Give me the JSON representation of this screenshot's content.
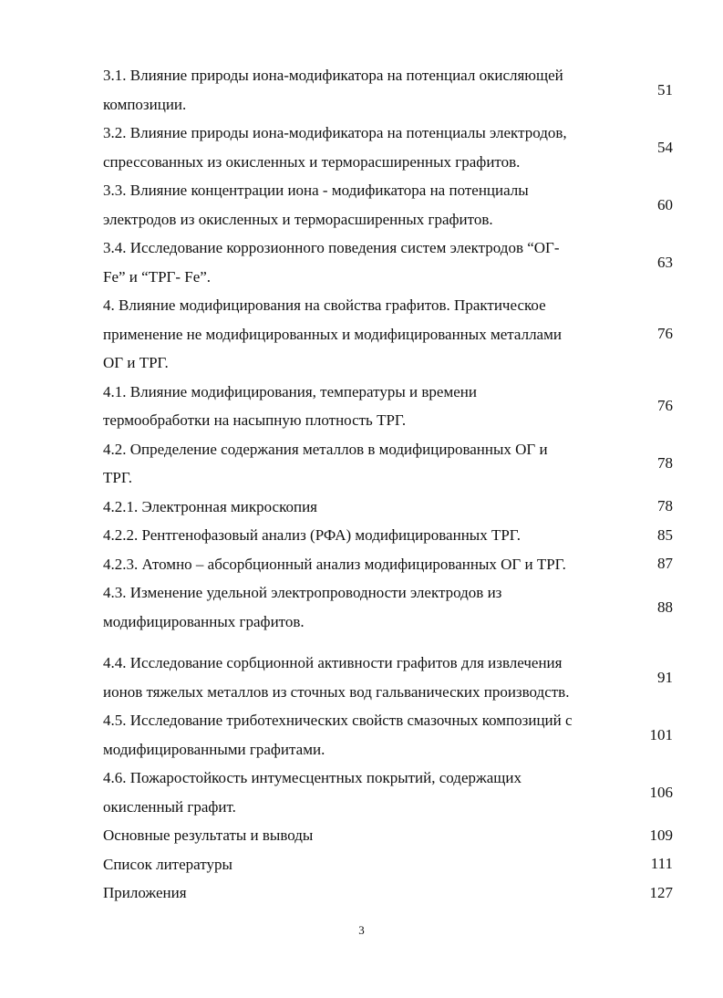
{
  "toc": [
    {
      "lines": [
        "3.1. Влияние природы иона-модификатора на потенциал окисляющей",
        "композиции."
      ],
      "page": "51"
    },
    {
      "lines": [
        "3.2. Влияние природы иона-модификатора на потенциалы электродов,",
        "спрессованных из окисленных и терморасширенных графитов."
      ],
      "page": "54"
    },
    {
      "lines": [
        "3.3. Влияние концентрации иона - модификатора на потенциалы",
        "электродов из окисленных и терморасширенных графитов."
      ],
      "page": "60"
    },
    {
      "lines": [
        "3.4. Исследование коррозионного поведения систем электродов “ОГ-",
        "Fe” и “ТРГ- Fe”."
      ],
      "page": "63"
    },
    {
      "lines": [
        "4. Влияние модифицирования на свойства графитов. Практическое",
        "применение не модифицированных и модифицированных металлами",
        "ОГ и ТРГ."
      ],
      "page": "76"
    },
    {
      "lines": [
        "4.1. Влияние модифицирования, температуры и времени",
        "термообработки на насыпную плотность ТРГ."
      ],
      "page": "76"
    },
    {
      "lines": [
        "4.2. Определение содержания металлов в модифицированных  ОГ и",
        "ТРГ."
      ],
      "page": "78"
    },
    {
      "lines": [
        "4.2.1. Электронная микроскопия"
      ],
      "page": "78"
    },
    {
      "lines": [
        "4.2.2. Рентгенофазовый анализ (РФА) модифицированных ТРГ."
      ],
      "page": "85"
    },
    {
      "lines": [
        "4.2.3. Атомно – абсорбционный анализ модифицированных ОГ и ТРГ."
      ],
      "page": "87"
    },
    {
      "lines": [
        "4.3. Изменение удельной электропроводности электродов из",
        "модифицированных графитов."
      ],
      "page": "88"
    },
    {
      "lines": [
        "4.4. Исследование сорбционной активности графитов для извлечения",
        "ионов тяжелых металлов из сточных вод гальванических производств."
      ],
      "page": "91"
    },
    {
      "lines": [
        "4.5. Исследование триботехнических свойств смазочных композиций с",
        "модифицированными графитами."
      ],
      "page": "101"
    },
    {
      "lines": [
        "4.6. Пожаростойкость интумесцентных покрытий, содержащих",
        "окисленный графит."
      ],
      "page": "106"
    },
    {
      "lines": [
        "Основные результаты и выводы"
      ],
      "page": "109"
    },
    {
      "lines": [
        "Список литературы"
      ],
      "page": "111"
    },
    {
      "lines": [
        "Приложения"
      ],
      "page": "127"
    }
  ],
  "page_number": "3"
}
